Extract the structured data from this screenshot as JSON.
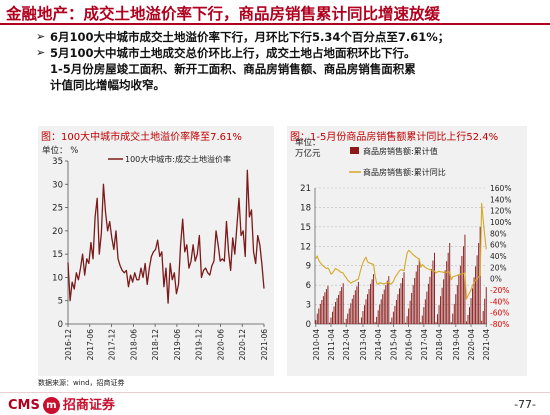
{
  "slide": {
    "title": "金融地产：成交土地溢价率下行，商品房销售累计同比增速放缓",
    "bullets": [
      "6月100大中城市成交土地溢价率下行，月环比下行5.34个百分点至7.61%；",
      "5月100大中城市土地成交总价环比上行，成交土地占地面积环比下行。",
      "1-5月份房屋竣工面积、新开工面积、商品房销售额、商品房销售面积累",
      "计值同比增幅均收窄。"
    ],
    "source": "数据来源：wind，招商证券",
    "logo_en": "CMS",
    "logo_mark": "m",
    "logo_cn": "招商证券",
    "page": "-77-"
  },
  "colors": {
    "title_red": "#b0001e",
    "panel_bg": "#f1f1f1",
    "line_darkred": "#7a1a1a",
    "bar_darkred": "#8b1a1a",
    "line_gold": "#d4a828",
    "neg_red": "#e00000"
  },
  "chart_data": [
    {
      "type": "line",
      "title": "图：100大中城市成交土地溢价率降至7.61%",
      "unit_label": "单位：  %",
      "legend": [
        "100大中城市:成交土地溢价率"
      ],
      "ylim": [
        0,
        35
      ],
      "yticks": [
        0,
        5,
        10,
        15,
        20,
        25,
        30,
        35
      ],
      "xtick_labels": [
        "2016-12",
        "2017-06",
        "2017-12",
        "2018-06",
        "2018-12",
        "2019-06",
        "2019-12",
        "2020-06",
        "2020-12",
        "2021-06"
      ],
      "grid": false,
      "series": [
        {
          "name": "100大中城市:成交土地溢价率",
          "values": [
            13.2,
            5.0,
            9.0,
            7.5,
            11.0,
            9.5,
            12.0,
            15.0,
            10.5,
            14.0,
            13.0,
            17.5,
            14.0,
            23.0,
            27.0,
            15.0,
            19.5,
            30.0,
            24.0,
            20.0,
            22.0,
            18.5,
            16.0,
            20.0,
            14.0,
            12.5,
            11.5,
            11.0,
            11.5,
            8.0,
            10.5,
            9.0,
            11.0,
            9.5,
            9.5,
            12.0,
            10.0,
            13.0,
            8.5,
            12.0,
            14.5,
            15.5,
            16.0,
            18.0,
            14.5,
            15.5,
            8.0,
            12.0,
            4.5,
            13.0,
            9.5,
            11.0,
            6.5,
            8.5,
            17.0,
            22.5,
            15.5,
            17.0,
            12.0,
            13.5,
            17.0,
            13.5,
            15.0,
            19.0,
            10.0,
            11.5,
            12.0,
            11.0,
            10.5,
            12.5,
            13.5,
            20.0,
            17.0,
            13.5,
            14.0,
            13.5,
            22.0,
            15.5,
            11.5,
            18.5,
            15.0,
            21.0,
            27.0,
            19.0,
            20.0,
            14.5,
            33.0,
            23.0,
            24.5,
            15.5,
            13.0,
            19.0,
            17.0,
            12.8,
            7.6
          ]
        }
      ]
    },
    {
      "type": "bar+line",
      "title": "图：1-5月份商品房销售额累计同比上行52.4%",
      "unit_label_1": "单位：",
      "unit_label_2": "万亿元",
      "left_ylim": [
        0,
        21
      ],
      "left_yticks": [
        0,
        3,
        6,
        9,
        12,
        15,
        18,
        21
      ],
      "right_ylim": [
        -80,
        160
      ],
      "right_ytick_labels": [
        "160%",
        "140%",
        "120%",
        "100%",
        "80%",
        "60%",
        "40%",
        "20%",
        "0%",
        "-20%",
        "-40%",
        "-60%",
        "-80%"
      ],
      "right_ytick_values": [
        160,
        140,
        120,
        100,
        80,
        60,
        40,
        20,
        0,
        -20,
        -40,
        -60,
        -80
      ],
      "xtick_labels": [
        "2010-04",
        "2011-04",
        "2012-04",
        "2013-04",
        "2014-04",
        "2015-04",
        "2016-04",
        "2017-04",
        "2018-04",
        "2019-04",
        "2020-04",
        "2021-04"
      ],
      "grid": "dashed",
      "series": [
        {
          "name": "商品房销售额:累计值",
          "kind": "bar",
          "values": [
            0.6,
            1.6,
            2.4,
            3.1,
            3.7,
            4.3,
            4.9,
            5.4,
            5.9,
            0.2,
            1.0,
            1.9,
            2.7,
            3.4,
            4.0,
            4.5,
            5.1,
            5.7,
            6.3,
            0.2,
            0.8,
            1.6,
            2.4,
            3.2,
            3.9,
            4.5,
            5.2,
            5.8,
            6.5,
            0.2,
            1.0,
            2.0,
            2.9,
            3.8,
            4.6,
            5.4,
            6.2,
            6.9,
            7.7,
            0.3,
            1.1,
            2.1,
            3.0,
            3.8,
            4.6,
            5.3,
            6.0,
            6.7,
            7.4,
            0.3,
            1.0,
            1.9,
            2.8,
            3.7,
            4.6,
            5.5,
            6.3,
            7.1,
            8.0,
            0.2,
            1.2,
            2.4,
            3.6,
            4.8,
            6.0,
            7.1,
            8.1,
            9.1,
            10.0,
            0.3,
            1.3,
            2.6,
            3.8,
            5.0,
            6.2,
            7.3,
            8.5,
            9.8,
            11.0,
            0.3,
            1.5,
            2.9,
            4.3,
            5.6,
            6.9,
            8.3,
            9.7,
            11.0,
            12.5,
            0.3,
            1.6,
            3.1,
            4.6,
            6.0,
            7.5,
            9.0,
            10.5,
            12.0,
            13.8,
            0.4,
            1.4,
            2.6,
            4.0,
            5.5,
            7.2,
            8.9,
            10.6,
            12.5,
            15.0,
            0.5,
            2.0,
            3.9,
            5.7
          ]
        },
        {
          "name": "商品房销售额:累计同比",
          "kind": "line",
          "values": [
            35,
            40,
            32,
            28,
            25,
            22,
            20,
            18,
            19,
            15,
            8,
            10,
            14,
            18,
            16,
            15,
            12,
            11,
            10,
            5,
            2,
            -3,
            -5,
            -8,
            -6,
            -5,
            -4,
            -2,
            -1,
            10,
            20,
            28,
            34,
            38,
            30,
            28,
            27,
            26,
            25,
            5,
            -8,
            -10,
            -7,
            -8,
            -9,
            -9,
            -8,
            -7,
            -6,
            -10,
            -8,
            -5,
            2,
            6,
            10,
            14,
            16,
            15,
            14,
            30,
            45,
            50,
            48,
            45,
            42,
            40,
            38,
            36,
            35,
            20,
            25,
            22,
            20,
            18,
            17,
            16,
            15,
            14,
            13,
            10,
            12,
            13,
            12,
            12,
            11,
            12,
            11,
            12,
            12,
            -2,
            3,
            4,
            5,
            6,
            7,
            8,
            8,
            9,
            10,
            -36,
            -30,
            -25,
            -20,
            -12,
            -7,
            -3,
            0,
            3,
            6,
            133,
            104,
            76,
            52
          ]
        }
      ]
    }
  ]
}
